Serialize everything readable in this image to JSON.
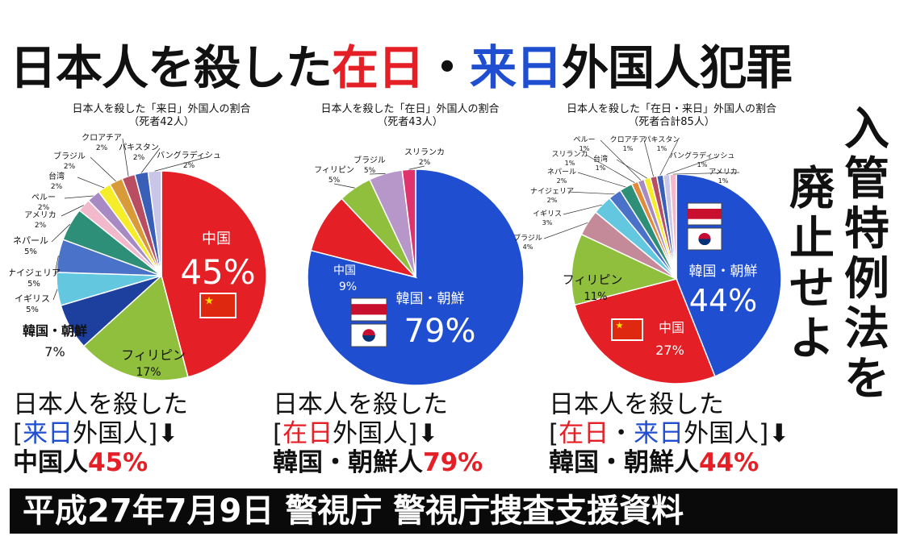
{
  "title": {
    "part1": "日本人を殺した",
    "zainichi": "在日",
    "dot": "・",
    "rainichi": "来日",
    "part2": "外国人犯罪"
  },
  "vertical_slogan": {
    "col1": "入管特例法を",
    "col2": "廃止せよ"
  },
  "captions": [
    {
      "line1": "日本人を殺した",
      "bracket_open": "[",
      "tag1": "来日",
      "tag_sep": "",
      "tag2": "",
      "tag_rest": "外国人]",
      "arrow": "⬇",
      "line3_label": "中国人",
      "line3_pct": "45%"
    },
    {
      "line1": "日本人を殺した",
      "bracket_open": "[",
      "tag1": "在日",
      "tag_sep": "",
      "tag2": "",
      "tag_rest": "外国人]",
      "arrow": "⬇",
      "line3_label": "韓国・朝鮮人",
      "line3_pct": "79%"
    },
    {
      "line1": "日本人を殺した",
      "bracket_open": "[",
      "tag1": "在日",
      "tag_sep": "・",
      "tag2": "来日",
      "tag_rest": "外国人]",
      "arrow": "⬇",
      "line3_label": "韓国・朝鮮人",
      "line3_pct": "44%"
    }
  ],
  "footer": "平成27年7月9日 警視庁 警視庁捜査支援資料",
  "colors": {
    "red": "#e41f26",
    "blue": "#1f4fd0",
    "green": "#8fbf3c",
    "footer_bg": "#0a0a0a"
  },
  "chart_data": [
    {
      "type": "pie",
      "title": "日本人を殺した「来日」外国人の割合",
      "subtitle": "（死者42人）",
      "slices": [
        {
          "label": "中国",
          "value": 45,
          "value_label": "45%",
          "color": "#e41f26",
          "flag": "china"
        },
        {
          "label": "フィリピン",
          "value": 17,
          "value_label": "17%",
          "color": "#8fbf3c"
        },
        {
          "label": "韓国・朝鮮",
          "value": 7,
          "value_label": "7%",
          "color": "#1d3f9e"
        },
        {
          "label": "イギリス",
          "value": 5,
          "value_label": "5%",
          "color": "#63c7e0"
        },
        {
          "label": "ナイジェリア",
          "value": 5,
          "value_label": "5%",
          "color": "#4a72c8"
        },
        {
          "label": "ネパール",
          "value": 5,
          "value_label": "5%",
          "color": "#2e8f79"
        },
        {
          "label": "アメリカ",
          "value": 2,
          "value_label": "2%",
          "color": "#f2b8cc"
        },
        {
          "label": "ペルー",
          "value": 2,
          "value_label": "2%",
          "color": "#a78ac4"
        },
        {
          "label": "台湾",
          "value": 2,
          "value_label": "2%",
          "color": "#f5ec2a"
        },
        {
          "label": "ブラジル",
          "value": 2,
          "value_label": "2%",
          "color": "#d99a3a"
        },
        {
          "label": "クロアチア",
          "value": 2,
          "value_label": "2%",
          "color": "#b94e62"
        },
        {
          "label": "パキスタン",
          "value": 2,
          "value_label": "2%",
          "color": "#3a5fb8"
        },
        {
          "label": "バングラディシュ",
          "value": 2,
          "value_label": "2%",
          "color": "#c9c6e8"
        }
      ]
    },
    {
      "type": "pie",
      "title": "日本人を殺した「在日」外国人の割合",
      "subtitle": "（死者43人）",
      "slices": [
        {
          "label": "韓国・朝鮮",
          "value": 79,
          "value_label": "79%",
          "color": "#1f4fd0",
          "flag": "korea"
        },
        {
          "label": "中国",
          "value": 9,
          "value_label": "9%",
          "color": "#e41f26"
        },
        {
          "label": "フィリピン",
          "value": 5,
          "value_label": "5%",
          "color": "#8fbf3c"
        },
        {
          "label": "ブラジル",
          "value": 5,
          "value_label": "5%",
          "color": "#b796c9"
        },
        {
          "label": "スリランカ",
          "value": 2,
          "value_label": "2%",
          "color": "#e0336d"
        }
      ]
    },
    {
      "type": "pie",
      "title": "日本人を殺した「在日・来日」外国人の割合",
      "subtitle": "（死者合計85人）",
      "slices": [
        {
          "label": "韓国・朝鮮",
          "value": 44,
          "value_label": "44%",
          "color": "#1f4fd0",
          "flag": "korea"
        },
        {
          "label": "中国",
          "value": 27,
          "value_label": "27%",
          "color": "#e41f26",
          "flag": "china"
        },
        {
          "label": "フィリピン",
          "value": 11,
          "value_label": "11%",
          "color": "#8fbf3c"
        },
        {
          "label": "ブラジル",
          "value": 4,
          "value_label": "4%",
          "color": "#c48a9a"
        },
        {
          "label": "イギリス",
          "value": 3,
          "value_label": "3%",
          "color": "#63c7e0"
        },
        {
          "label": "ナイジェリア",
          "value": 2,
          "value_label": "2%",
          "color": "#4a72c8"
        },
        {
          "label": "ネパール",
          "value": 2,
          "value_label": "2%",
          "color": "#2e8f79"
        },
        {
          "label": "スリランカ",
          "value": 1,
          "value_label": "1%",
          "color": "#e08a3a"
        },
        {
          "label": "ペルー",
          "value": 1,
          "value_label": "1%",
          "color": "#a78ac4"
        },
        {
          "label": "台湾",
          "value": 1,
          "value_label": "1%",
          "color": "#f5ec2a"
        },
        {
          "label": "クロアチア",
          "value": 1,
          "value_label": "1%",
          "color": "#b94e62"
        },
        {
          "label": "パキスタン",
          "value": 1,
          "value_label": "1%",
          "color": "#3a5fb8"
        },
        {
          "label": "バングラディッシュ",
          "value": 1,
          "value_label": "1%",
          "color": "#c9c6e8"
        },
        {
          "label": "アメリカ",
          "value": 1,
          "value_label": "1%",
          "color": "#f2b8cc"
        }
      ]
    }
  ]
}
